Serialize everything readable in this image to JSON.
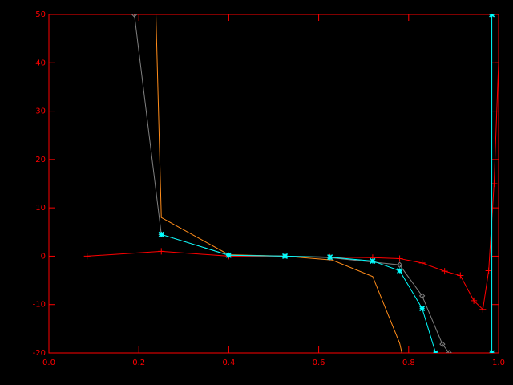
{
  "chart_data": {
    "type": "line",
    "xlim": [
      0,
      1
    ],
    "ylim": [
      -20,
      50
    ],
    "xticks": [
      {
        "value": 0,
        "label": "0.0"
      },
      {
        "value": 0.2,
        "label": "0.2"
      },
      {
        "value": 0.4,
        "label": "0.4"
      },
      {
        "value": 0.6,
        "label": "0.6"
      },
      {
        "value": 0.8,
        "label": "0.8"
      },
      {
        "value": 1,
        "label": "1.0"
      }
    ],
    "yticks": [
      -20,
      -10,
      0,
      10,
      20,
      30,
      40,
      50
    ],
    "axis_color": "#ff0000",
    "background": "#000000",
    "series": [
      {
        "color": "#ff0000",
        "marker": "plus",
        "x": [
          0.085,
          0.25,
          0.4,
          0.525,
          0.625,
          0.72,
          0.78,
          0.83,
          0.88,
          0.915,
          0.945,
          0.965,
          0.978,
          0.99,
          1.0
        ],
        "values": [
          0,
          1,
          0,
          0,
          -0.2,
          -0.3,
          -0.5,
          -1.4,
          -3.1,
          -4,
          -9.2,
          -11,
          -3,
          15,
          40
        ]
      },
      {
        "color": "#ff8c1a",
        "marker": "none",
        "x": [
          0.238,
          0.25,
          0.4,
          0.525,
          0.63,
          0.72,
          0.78,
          0.785
        ],
        "values": [
          50,
          8,
          0.3,
          0,
          -0.8,
          -4.2,
          -18,
          -20
        ]
      },
      {
        "color": "#808080",
        "marker": "diamond",
        "x": [
          0.19,
          0.25,
          0.4,
          0.525,
          0.625,
          0.78,
          0.83,
          0.875,
          0.89
        ],
        "values": [
          50,
          4.5,
          0.2,
          0,
          -0.3,
          -1.8,
          -8.2,
          -18.2,
          -20
        ]
      },
      {
        "color": "#00ffff",
        "marker": "asterisk",
        "x": [
          0.25,
          0.4,
          0.525,
          0.625,
          0.72,
          0.78,
          0.83,
          0.86,
          null,
          0.985,
          0.985
        ],
        "values": [
          4.5,
          0.2,
          0,
          -0.2,
          -1,
          -3,
          -10.8,
          -20,
          null,
          -20,
          50
        ]
      }
    ]
  }
}
